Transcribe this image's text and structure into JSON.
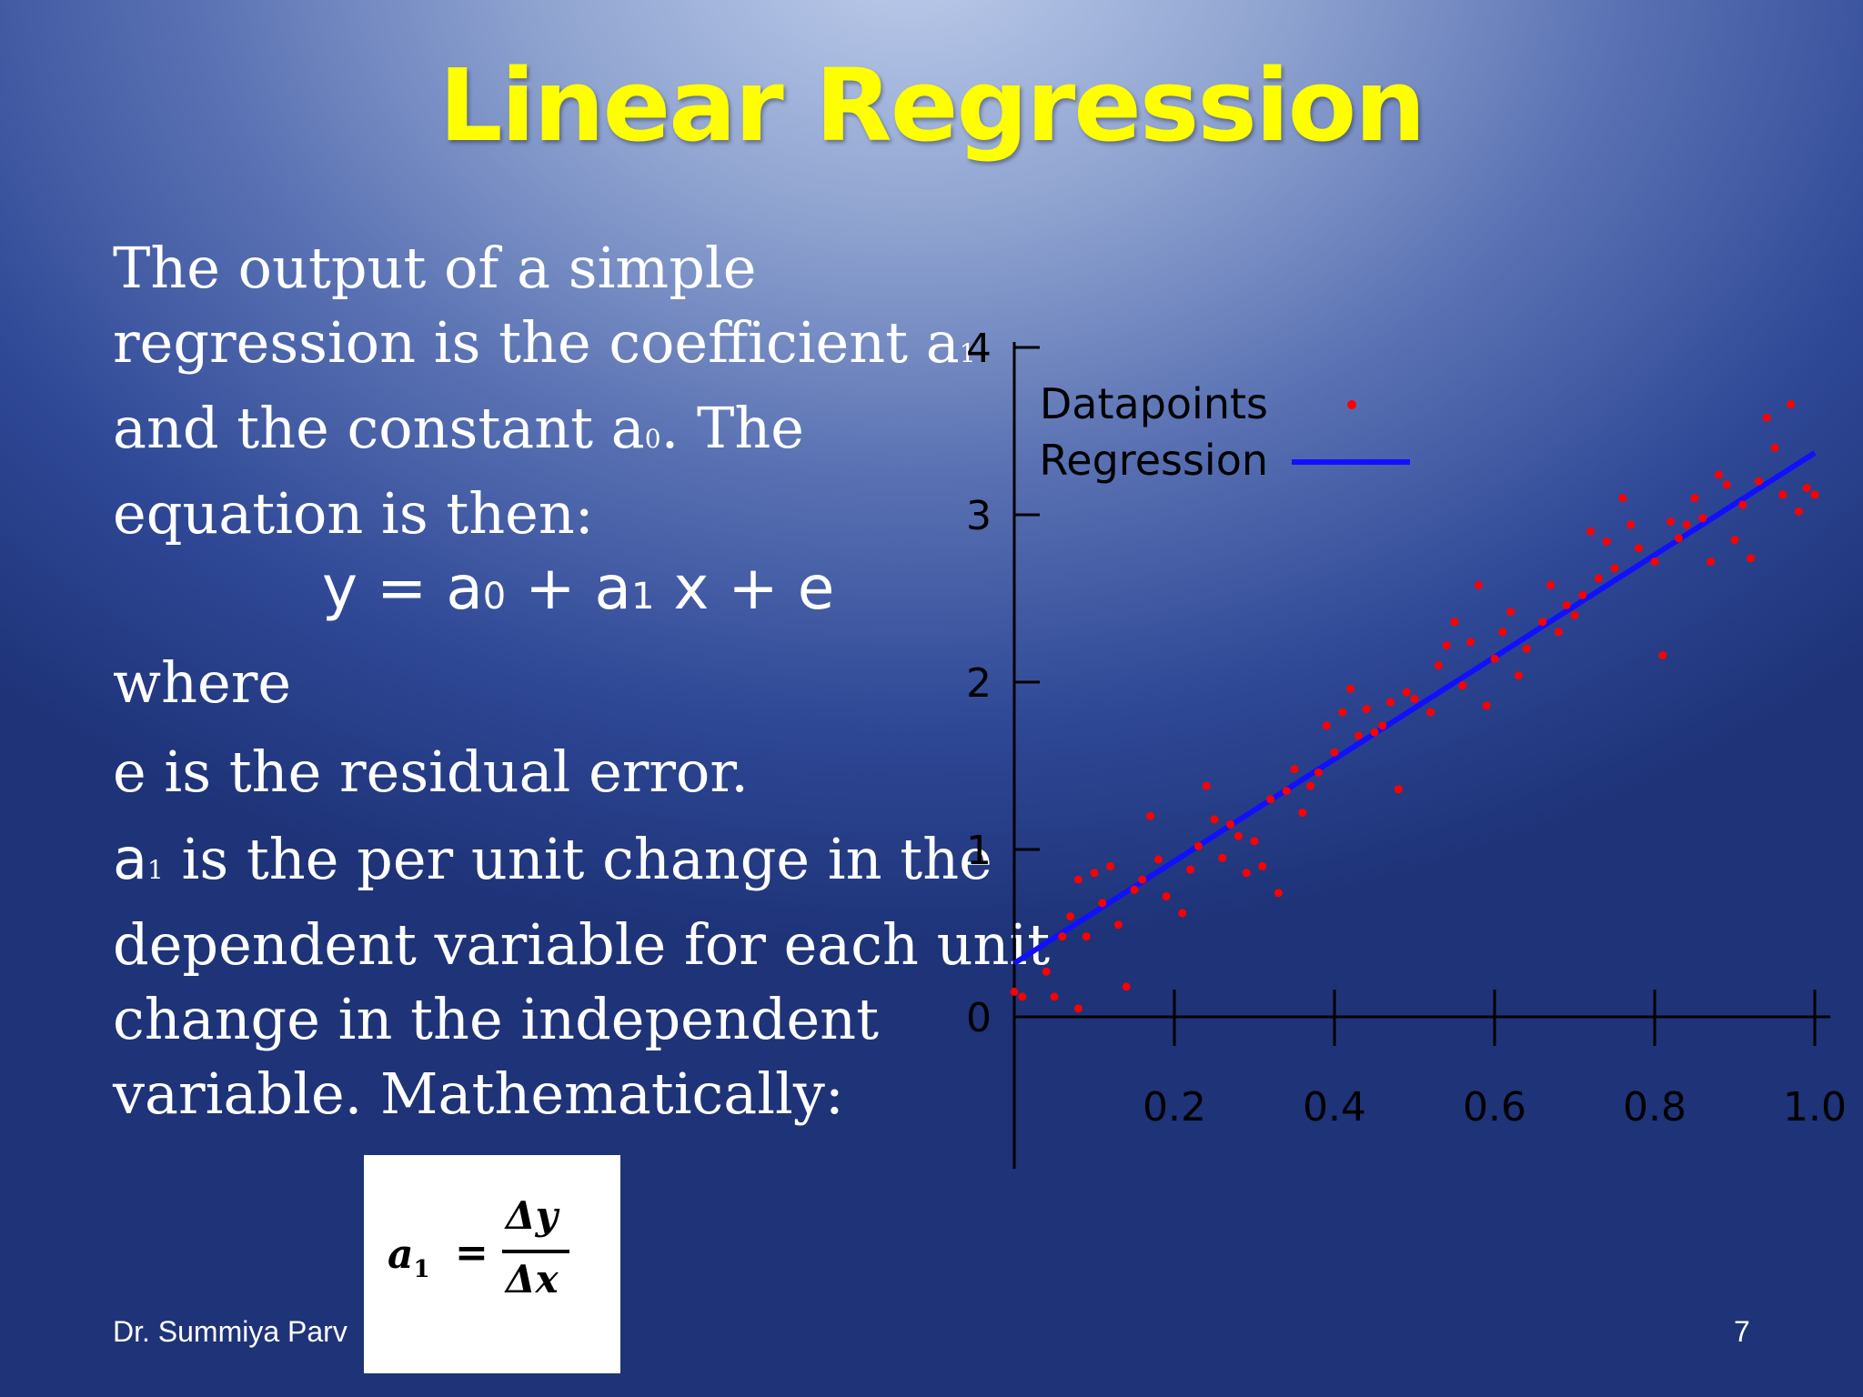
{
  "slide": {
    "title": "Linear Regression",
    "p1": {
      "l1": "The output of a simple",
      "l2a": "regression is the coefficient a",
      "l2s": "1",
      "l3a": "and the constant a",
      "l3s": "0",
      "l3b": ".  The",
      "l4": "equation is then:"
    },
    "equation": {
      "y": "y = a",
      "s0": "0",
      "plus1": " + a",
      "s1": "1",
      "rest": " x + e"
    },
    "where": "where",
    "residual": "e is the residual error.",
    "p2": {
      "l1a": "a",
      "l1s": "1",
      "l1b": " is the per unit change in the",
      "l2": "dependent variable for each unit",
      "l3": "change in the independent",
      "l4": "variable.  Mathematically:"
    },
    "formula": {
      "lhs": "a",
      "lhs_sub": "1",
      "eq": "=",
      "num": "Δy",
      "den": "Δx"
    },
    "footer_author": "Dr. Summiya Parv",
    "page_number": "7"
  },
  "chart_data": {
    "type": "scatter",
    "x_ticks": [
      "0.2",
      "0.4",
      "0.6",
      "0.8",
      "1.0"
    ],
    "y_ticks": [
      "0",
      "1",
      "2",
      "3",
      "4"
    ],
    "xlim": [
      0,
      1.0
    ],
    "ylim": [
      0,
      4
    ],
    "legend": {
      "position": "top-left",
      "datapoints": "Datapoints",
      "regression": "Regression"
    },
    "colors": {
      "points": "#ff0000",
      "line": "#1010ff",
      "axis": "#000000"
    },
    "regression": {
      "intercept": 0.32,
      "slope": 3.05
    },
    "points": [
      [
        0.0,
        0.15
      ],
      [
        0.01,
        0.12
      ],
      [
        0.04,
        0.27
      ],
      [
        0.05,
        0.12
      ],
      [
        0.06,
        0.48
      ],
      [
        0.07,
        0.6
      ],
      [
        0.08,
        0.05
      ],
      [
        0.08,
        0.82
      ],
      [
        0.09,
        0.48
      ],
      [
        0.1,
        0.86
      ],
      [
        0.11,
        0.68
      ],
      [
        0.12,
        0.9
      ],
      [
        0.13,
        0.55
      ],
      [
        0.14,
        0.18
      ],
      [
        0.15,
        0.76
      ],
      [
        0.16,
        0.82
      ],
      [
        0.17,
        1.2
      ],
      [
        0.18,
        0.94
      ],
      [
        0.19,
        0.72
      ],
      [
        0.21,
        0.62
      ],
      [
        0.22,
        0.88
      ],
      [
        0.23,
        1.02
      ],
      [
        0.24,
        1.38
      ],
      [
        0.25,
        1.18
      ],
      [
        0.26,
        0.95
      ],
      [
        0.27,
        1.15
      ],
      [
        0.28,
        1.08
      ],
      [
        0.29,
        0.86
      ],
      [
        0.3,
        1.05
      ],
      [
        0.31,
        0.9
      ],
      [
        0.32,
        1.3
      ],
      [
        0.33,
        0.74
      ],
      [
        0.34,
        1.35
      ],
      [
        0.35,
        1.48
      ],
      [
        0.36,
        1.22
      ],
      [
        0.37,
        1.38
      ],
      [
        0.38,
        1.46
      ],
      [
        0.39,
        1.74
      ],
      [
        0.4,
        1.58
      ],
      [
        0.41,
        1.82
      ],
      [
        0.42,
        1.96
      ],
      [
        0.43,
        1.68
      ],
      [
        0.44,
        1.84
      ],
      [
        0.45,
        1.7
      ],
      [
        0.46,
        1.74
      ],
      [
        0.47,
        1.88
      ],
      [
        0.48,
        1.36
      ],
      [
        0.49,
        1.94
      ],
      [
        0.5,
        1.9
      ],
      [
        0.52,
        1.82
      ],
      [
        0.53,
        2.1
      ],
      [
        0.54,
        2.22
      ],
      [
        0.55,
        2.36
      ],
      [
        0.56,
        1.98
      ],
      [
        0.57,
        2.24
      ],
      [
        0.58,
        2.58
      ],
      [
        0.59,
        1.86
      ],
      [
        0.6,
        2.14
      ],
      [
        0.61,
        2.3
      ],
      [
        0.62,
        2.42
      ],
      [
        0.63,
        2.04
      ],
      [
        0.64,
        2.2
      ],
      [
        0.66,
        2.36
      ],
      [
        0.67,
        2.58
      ],
      [
        0.68,
        2.3
      ],
      [
        0.69,
        2.46
      ],
      [
        0.7,
        2.4
      ],
      [
        0.71,
        2.52
      ],
      [
        0.72,
        2.9
      ],
      [
        0.73,
        2.62
      ],
      [
        0.74,
        2.84
      ],
      [
        0.75,
        2.68
      ],
      [
        0.76,
        3.1
      ],
      [
        0.77,
        2.94
      ],
      [
        0.78,
        2.8
      ],
      [
        0.8,
        2.72
      ],
      [
        0.81,
        2.16
      ],
      [
        0.82,
        2.96
      ],
      [
        0.83,
        2.86
      ],
      [
        0.84,
        2.94
      ],
      [
        0.85,
        3.1
      ],
      [
        0.86,
        2.98
      ],
      [
        0.87,
        2.72
      ],
      [
        0.88,
        3.24
      ],
      [
        0.89,
        3.18
      ],
      [
        0.9,
        2.85
      ],
      [
        0.91,
        3.06
      ],
      [
        0.92,
        2.74
      ],
      [
        0.93,
        3.2
      ],
      [
        0.94,
        3.58
      ],
      [
        0.95,
        3.4
      ],
      [
        0.96,
        3.12
      ],
      [
        0.97,
        3.66
      ],
      [
        0.98,
        3.02
      ],
      [
        0.99,
        3.16
      ],
      [
        1.0,
        3.12
      ]
    ]
  }
}
